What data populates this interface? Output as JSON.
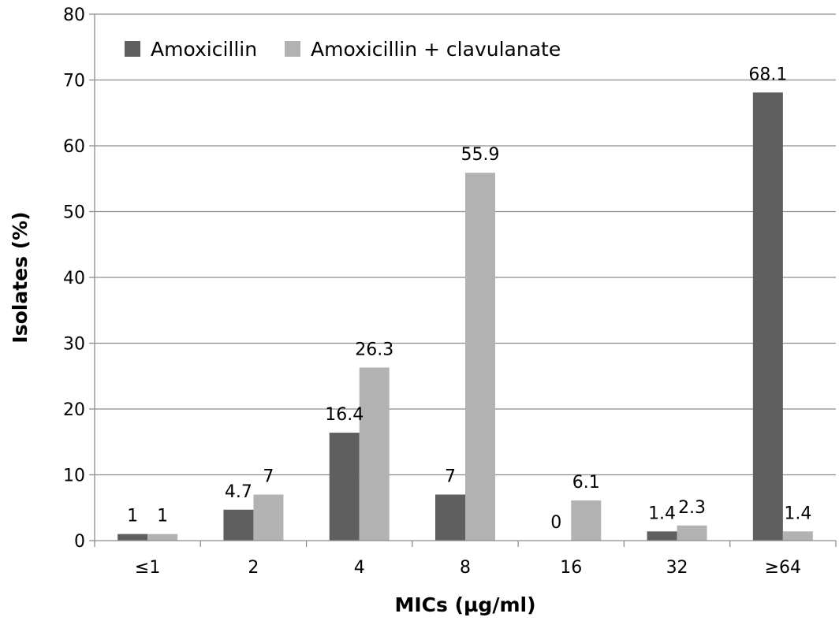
{
  "chart_data": {
    "type": "bar",
    "title": "",
    "xlabel": "MICs (µg/ml)",
    "ylabel": "Isolates (%)",
    "ylim": [
      0,
      80
    ],
    "yticks": [
      "0",
      "10",
      "20",
      "30",
      "40",
      "50",
      "60",
      "70",
      "80"
    ],
    "grid": true,
    "legend_position": "top-left",
    "categories": [
      "≤1",
      "2",
      "4",
      "8",
      "16",
      "32",
      "≥64"
    ],
    "series": [
      {
        "name": "Amoxicillin",
        "color": "#5f5f5f",
        "values": [
          1,
          4.7,
          16.4,
          7,
          0,
          1.4,
          68.1
        ],
        "labels": [
          "1",
          "4.7",
          "16.4",
          "7",
          "0",
          "1.4",
          "68.1"
        ]
      },
      {
        "name": "Amoxicillin + clavulanate",
        "color": "#b2b2b2",
        "values": [
          1,
          7,
          26.3,
          55.9,
          6.1,
          2.3,
          1.4
        ],
        "labels": [
          "1",
          "7",
          "26.3",
          "55.9",
          "6.1",
          "2.3",
          "1.4"
        ]
      }
    ]
  }
}
